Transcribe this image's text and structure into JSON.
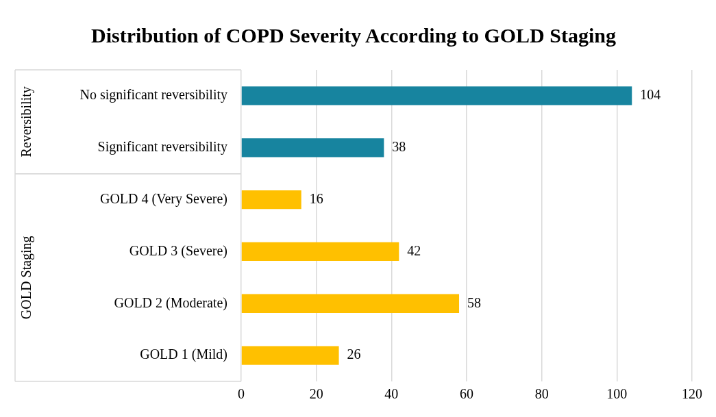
{
  "chart_data": {
    "type": "bar",
    "orientation": "horizontal",
    "title": "Distribution of COPD Severity According to GOLD Staging",
    "categories": [
      "No significant reversibility",
      "Significant reversibility",
      "GOLD 4 (Very Severe)",
      "GOLD 3 (Severe)",
      "GOLD 2 (Moderate)",
      "GOLD 1 (Mild)"
    ],
    "values": [
      104,
      38,
      16,
      42,
      58,
      26
    ],
    "colors": [
      "#17849f",
      "#17849f",
      "#ffc000",
      "#ffc000",
      "#ffc000",
      "#ffc000"
    ],
    "xlim": [
      0,
      120
    ],
    "xticks": [
      0,
      20,
      40,
      60,
      80,
      100,
      120
    ],
    "grid": "x",
    "data_labels": true,
    "annotations": [
      "Reversibility",
      "GOLD Staging"
    ]
  }
}
